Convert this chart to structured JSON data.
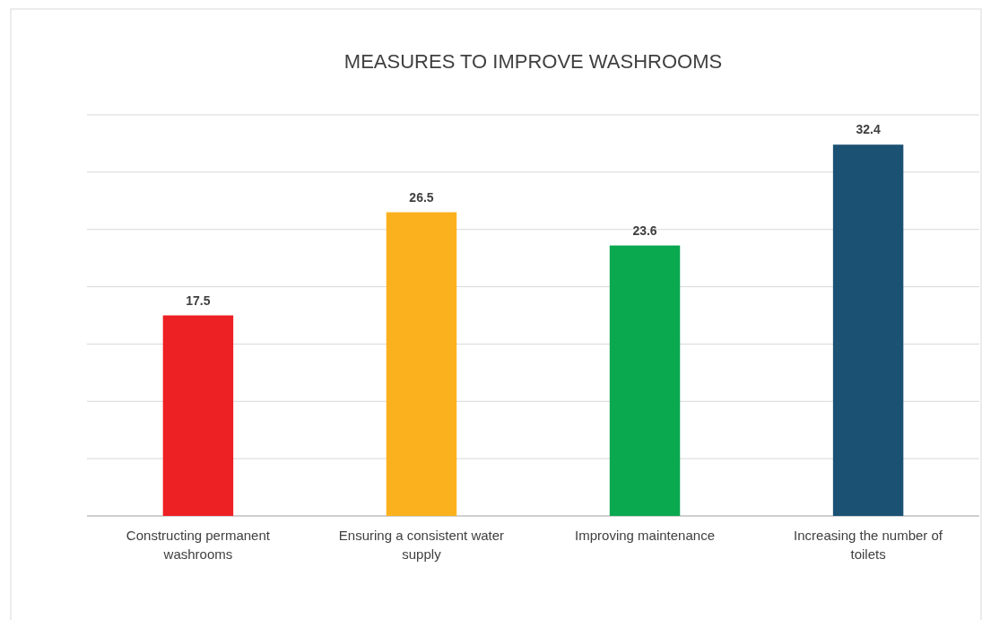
{
  "chart_data": {
    "type": "bar",
    "title": "MEASURES TO IMPROVE WASHROOMS",
    "categories": [
      "Constructing permanent washrooms",
      "Ensuring a consistent water supply",
      "Improving maintenance",
      "Increasing the number of toilets"
    ],
    "values": [
      17.5,
      26.5,
      23.6,
      32.4
    ],
    "colors": [
      "#ed2024",
      "#fbb11d",
      "#0aa84f",
      "#1b5173"
    ],
    "ylim": [
      0,
      35
    ],
    "yticks": [
      {
        "value": 0,
        "label": null
      },
      {
        "value": 5,
        "label": null
      },
      {
        "value": 10,
        "label": null
      },
      {
        "value": 15,
        "label": null
      },
      {
        "value": 20,
        "label": null
      },
      {
        "value": 25,
        "label": null
      },
      {
        "value": 30,
        "label": null
      },
      {
        "value": 35,
        "label": null
      }
    ],
    "grid": "y",
    "tick_labels": "x",
    "data_labels": true
  }
}
